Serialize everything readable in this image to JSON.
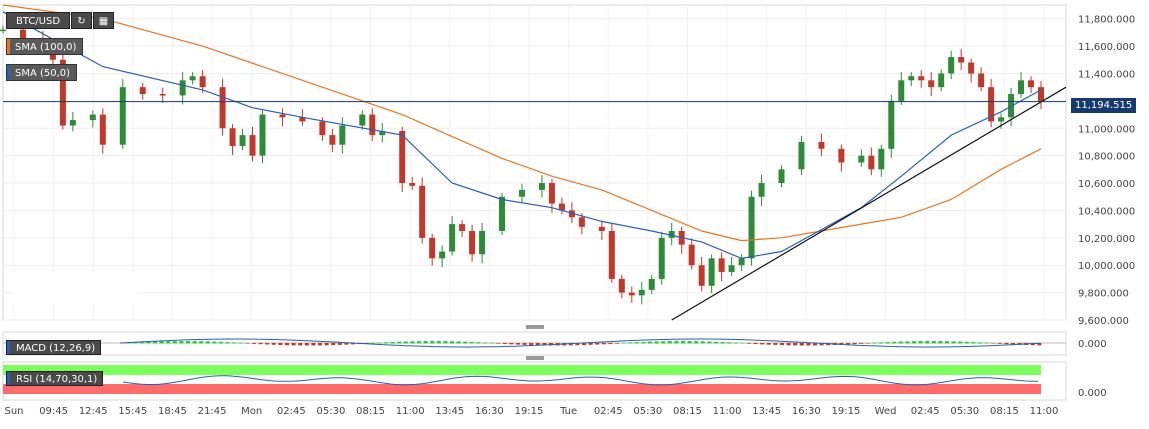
{
  "toolbar": {
    "symbol": "BTC/USD",
    "refresh_icon": "refresh-icon",
    "calendar_icon": "calendar-icon"
  },
  "legend": {
    "sma100": "SMA (100,0)",
    "sma50": "SMA (50,0)",
    "sma100_color": "#e87722",
    "sma50_color": "#2b5fb4"
  },
  "indicators": {
    "macd_label": "MACD (12,26,9)",
    "rsi_label": "RSI (14,70,30,1)",
    "macd_zero": "0.000",
    "rsi_zero": "0.000"
  },
  "last_price": "11,194.515",
  "colors": {
    "up": "#2e8b3a",
    "down": "#c0392b",
    "price_tag": "#163a70",
    "trendline": "#111111",
    "rsi_upper_band": "#7cff5c",
    "rsi_lower_band": "#ff6b6b"
  },
  "chart_data": {
    "type": "candlestick",
    "ylim": [
      9600,
      11900
    ],
    "y_ticks": [
      "11,800.000",
      "11,600.000",
      "11,400.000",
      "11,200.000",
      "11,000.000",
      "10,800.000",
      "10,600.000",
      "10,400.000",
      "10,200.000",
      "10,000.000",
      "9,800.000",
      "9,600.000"
    ],
    "x_ticks": [
      "Sun",
      "09:45",
      "12:45",
      "15:45",
      "18:45",
      "21:45",
      "Mon",
      "02:45",
      "05:30",
      "08:15",
      "11:00",
      "13:45",
      "16:30",
      "19:15",
      "Tue",
      "02:45",
      "05:30",
      "08:15",
      "11:00",
      "13:45",
      "16:30",
      "19:15",
      "Wed",
      "02:45",
      "05:30",
      "08:15",
      "11:00"
    ],
    "close_path": [
      [
        0,
        11720
      ],
      [
        2,
        11650
      ],
      [
        4,
        11600
      ],
      [
        5,
        11500
      ],
      [
        6,
        11020
      ],
      [
        7,
        11060
      ],
      [
        9,
        11100
      ],
      [
        10,
        10880
      ],
      [
        12,
        11300
      ],
      [
        14,
        11250
      ],
      [
        16,
        11240
      ],
      [
        18,
        11350
      ],
      [
        19,
        11380
      ],
      [
        20,
        11300
      ],
      [
        22,
        11000
      ],
      [
        23,
        10870
      ],
      [
        24,
        10950
      ],
      [
        25,
        10800
      ],
      [
        26,
        11100
      ],
      [
        28,
        11080
      ],
      [
        30,
        11050
      ],
      [
        32,
        10950
      ],
      [
        33,
        10880
      ],
      [
        34,
        11020
      ],
      [
        36,
        11100
      ],
      [
        37,
        10950
      ],
      [
        38,
        10980
      ],
      [
        40,
        10600
      ],
      [
        41,
        10580
      ],
      [
        42,
        10200
      ],
      [
        43,
        10050
      ],
      [
        44,
        10100
      ],
      [
        45,
        10300
      ],
      [
        46,
        10250
      ],
      [
        47,
        10080
      ],
      [
        48,
        10250
      ],
      [
        50,
        10500
      ],
      [
        52,
        10550
      ],
      [
        54,
        10600
      ],
      [
        55,
        10450
      ],
      [
        56,
        10400
      ],
      [
        57,
        10350
      ],
      [
        58,
        10280
      ],
      [
        60,
        10250
      ],
      [
        61,
        9900
      ],
      [
        62,
        9800
      ],
      [
        63,
        9780
      ],
      [
        64,
        9820
      ],
      [
        65,
        9900
      ],
      [
        66,
        10200
      ],
      [
        67,
        10250
      ],
      [
        68,
        10150
      ],
      [
        69,
        10000
      ],
      [
        70,
        9850
      ],
      [
        71,
        10050
      ],
      [
        72,
        9950
      ],
      [
        73,
        10000
      ],
      [
        74,
        10050
      ],
      [
        75,
        10500
      ],
      [
        76,
        10600
      ],
      [
        78,
        10700
      ],
      [
        80,
        10900
      ],
      [
        82,
        10850
      ],
      [
        84,
        10750
      ],
      [
        86,
        10800
      ],
      [
        87,
        10700
      ],
      [
        88,
        10850
      ],
      [
        89,
        11200
      ],
      [
        90,
        11350
      ],
      [
        91,
        11380
      ],
      [
        92,
        11350
      ],
      [
        93,
        11300
      ],
      [
        94,
        11400
      ],
      [
        95,
        11520
      ],
      [
        96,
        11480
      ],
      [
        97,
        11400
      ],
      [
        98,
        11300
      ],
      [
        99,
        11050
      ],
      [
        100,
        11080
      ],
      [
        101,
        11250
      ],
      [
        102,
        11350
      ],
      [
        103,
        11300
      ],
      [
        104,
        11194
      ]
    ],
    "sma50": [
      [
        0,
        11850
      ],
      [
        10,
        11450
      ],
      [
        20,
        11280
      ],
      [
        25,
        11150
      ],
      [
        30,
        11080
      ],
      [
        40,
        10950
      ],
      [
        45,
        10600
      ],
      [
        50,
        10480
      ],
      [
        55,
        10420
      ],
      [
        60,
        10320
      ],
      [
        65,
        10250
      ],
      [
        70,
        10170
      ],
      [
        74,
        10050
      ],
      [
        78,
        10100
      ],
      [
        82,
        10260
      ],
      [
        86,
        10420
      ],
      [
        90,
        10650
      ],
      [
        95,
        10950
      ],
      [
        100,
        11120
      ],
      [
        104,
        11280
      ]
    ],
    "sma100": [
      [
        0,
        11900
      ],
      [
        10,
        11800
      ],
      [
        20,
        11600
      ],
      [
        30,
        11350
      ],
      [
        40,
        11100
      ],
      [
        50,
        10780
      ],
      [
        55,
        10650
      ],
      [
        60,
        10550
      ],
      [
        65,
        10400
      ],
      [
        70,
        10250
      ],
      [
        74,
        10180
      ],
      [
        78,
        10200
      ],
      [
        82,
        10250
      ],
      [
        86,
        10300
      ],
      [
        90,
        10350
      ],
      [
        95,
        10480
      ],
      [
        100,
        10700
      ],
      [
        104,
        10850
      ]
    ],
    "trendline": [
      [
        67,
        9600
      ],
      [
        104,
        11200
      ],
      [
        108,
        11300
      ]
    ]
  }
}
